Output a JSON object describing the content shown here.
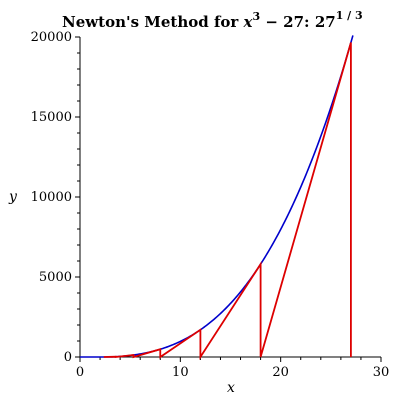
{
  "chart_data": {
    "type": "line",
    "title": {
      "prefix": "Newton's Method for ",
      "var": "x",
      "var_exponent": "3",
      "minus": " − 27:  ",
      "base": "27",
      "exponent": "1 / 3"
    },
    "xlabel": "x",
    "ylabel": "y",
    "xlim": [
      0,
      30
    ],
    "ylim": [
      0,
      20000
    ],
    "x_ticks": [
      0,
      10,
      20,
      30
    ],
    "y_ticks": [
      0,
      5000,
      10000,
      15000,
      20000
    ],
    "grid": false,
    "legend": "none",
    "function": {
      "expression": "x^3 - 27",
      "x_range": [
        0,
        27.2
      ]
    },
    "newton_iterates": [
      27,
      18,
      12,
      8,
      5.33,
      3.56,
      2.37
    ],
    "newton_path": [
      {
        "x": 27,
        "y": 0
      },
      {
        "x": 27,
        "y": 19656
      },
      {
        "x": 18,
        "y": 0
      },
      {
        "x": 18,
        "y": 5805
      },
      {
        "x": 12,
        "y": 0
      },
      {
        "x": 12,
        "y": 1701
      },
      {
        "x": 8,
        "y": 0
      },
      {
        "x": 8,
        "y": 485
      },
      {
        "x": 5.33,
        "y": 0
      },
      {
        "x": 5.33,
        "y": 124
      },
      {
        "x": 3.56,
        "y": 0
      },
      {
        "x": 3.56,
        "y": 18
      },
      {
        "x": 2.37,
        "y": 0
      }
    ],
    "colors": {
      "curve": "#0000cc",
      "newton": "#dd0000",
      "axis": "#000000"
    }
  }
}
